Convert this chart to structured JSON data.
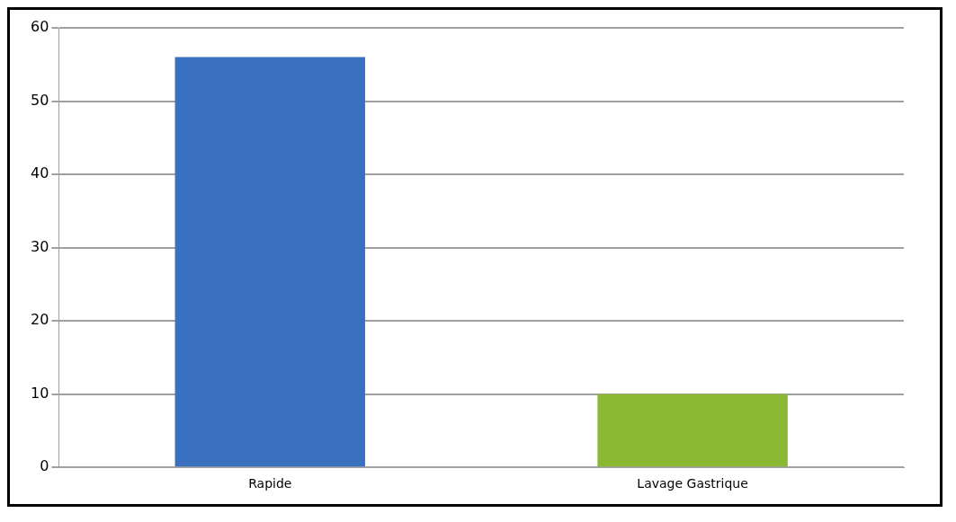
{
  "chart_data": {
    "type": "bar",
    "categories": [
      "Rapide",
      "Lavage Gastrique"
    ],
    "values": [
      56,
      10
    ],
    "colors": [
      "#3a70c0",
      "#8ab833"
    ],
    "ylim": [
      0,
      60
    ],
    "yticks": [
      0,
      10,
      20,
      30,
      40,
      50,
      60
    ],
    "grid": "y",
    "legend": false
  }
}
